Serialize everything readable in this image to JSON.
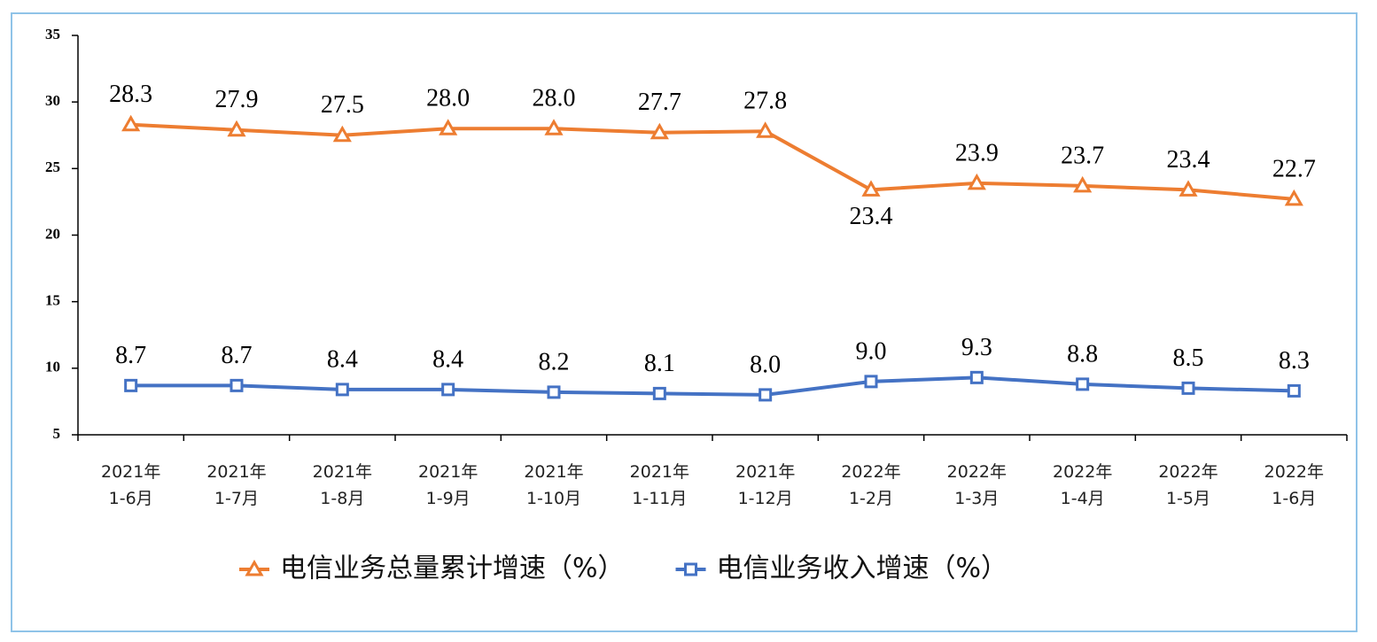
{
  "chart_data": {
    "type": "line",
    "categories": [
      "2021年\n1-6月",
      "2021年\n1-7月",
      "2021年\n1-8月",
      "2021年\n1-9月",
      "2021年\n1-10月",
      "2021年\n1-11月",
      "2021年\n1-12月",
      "2022年\n1-2月",
      "2022年\n1-3月",
      "2022年\n1-4月",
      "2022年\n1-5月",
      "2022年\n1-6月"
    ],
    "series": [
      {
        "name": "电信业务总量累计增速（%）",
        "color": "#ed7d31",
        "marker": "triangle",
        "values": [
          28.3,
          27.9,
          27.5,
          28.0,
          28.0,
          27.7,
          27.8,
          23.4,
          23.9,
          23.7,
          23.4,
          22.7
        ],
        "value_labels": [
          "28.3",
          "27.9",
          "27.5",
          "28.0",
          "28.0",
          "27.7",
          "27.8",
          "23.4",
          "23.9",
          "23.7",
          "23.4",
          "22.7"
        ]
      },
      {
        "name": "电信业务收入增速（%）",
        "color": "#4472c4",
        "marker": "square",
        "values": [
          8.7,
          8.7,
          8.4,
          8.4,
          8.2,
          8.1,
          8.0,
          9.0,
          9.3,
          8.8,
          8.5,
          8.3
        ],
        "value_labels": [
          "8.7",
          "8.7",
          "8.4",
          "8.4",
          "8.2",
          "8.1",
          "8.0",
          "9.0",
          "9.3",
          "8.8",
          "8.5",
          "8.3"
        ]
      }
    ],
    "ylim": [
      5,
      35
    ],
    "yticks": [
      5,
      10,
      15,
      20,
      25,
      30,
      35
    ],
    "grid": false,
    "legend": "bottom"
  }
}
